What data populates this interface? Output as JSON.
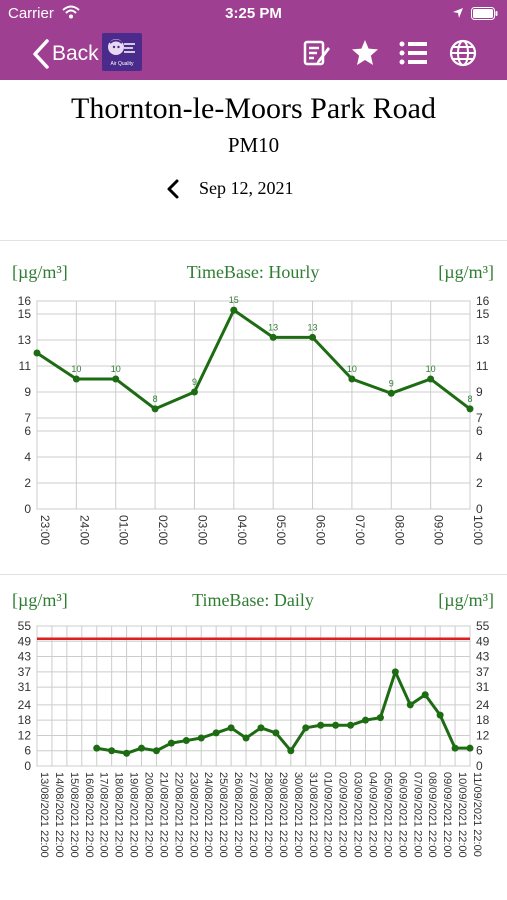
{
  "status": {
    "carrier": "Carrier",
    "time": "3:25 PM"
  },
  "nav": {
    "back_label": "Back",
    "logo_text": "Air Quality",
    "icons": [
      "notes-icon",
      "star-icon",
      "list-icon",
      "globe-icon"
    ]
  },
  "station": {
    "title": "Thornton-le-Moors Park Road",
    "pollutant": "PM10"
  },
  "date": {
    "label": "Sep 12, 2021"
  },
  "colors": {
    "accent": "#9e3f91",
    "series": "#1d6b12",
    "label": "#2f7d32",
    "limit": "#dd1f1f",
    "grid": "#cccccc"
  },
  "chart_data": [
    {
      "type": "line",
      "unit_left": "[µg/m³]",
      "unit_right": "[µg/m³]",
      "title": "TimeBase: Hourly",
      "categories": [
        "23:00",
        "24:00",
        "01:00",
        "02:00",
        "03:00",
        "04:00",
        "05:00",
        "06:00",
        "07:00",
        "08:00",
        "09:00",
        "10:00"
      ],
      "values": [
        12,
        10,
        10,
        7.7,
        9,
        15.3,
        13.2,
        13.2,
        10,
        8.9,
        10,
        7.7
      ],
      "data_labels": [
        "",
        "10",
        "10",
        "8",
        "9",
        "15",
        "13",
        "13",
        "10",
        "9",
        "10",
        "8"
      ],
      "y_ticks": [
        "0",
        "2",
        "4",
        "6",
        "7",
        "9",
        "11",
        "13",
        "15",
        "16"
      ],
      "ylim": [
        0,
        16
      ],
      "grid": true
    },
    {
      "type": "line",
      "unit_left": "[µg/m³]",
      "unit_right": "[µg/m³]",
      "title": "TimeBase: Daily",
      "categories": [
        "13/08/2021 22:00",
        "14/08/2021 22:00",
        "15/08/2021 22:00",
        "16/08/2021 22:00",
        "17/08/2021 22:00",
        "18/08/2021 22:00",
        "19/08/2021 22:00",
        "20/08/2021 22:00",
        "21/08/2021 22:00",
        "22/08/2021 22:00",
        "23/08/2021 22:00",
        "24/08/2021 22:00",
        "25/08/2021 22:00",
        "26/08/2021 22:00",
        "27/08/2021 22:00",
        "28/08/2021 22:00",
        "29/08/2021 22:00",
        "30/08/2021 22:00",
        "31/08/2021 22:00",
        "01/09/2021 22:00",
        "02/09/2021 22:00",
        "03/09/2021 22:00",
        "04/09/2021 22:00",
        "05/09/2021 22:00",
        "06/09/2021 22:00",
        "07/09/2021 22:00",
        "08/09/2021 22:00",
        "09/09/2021 22:00",
        "10/09/2021 22:00",
        "11/09/2021 22:00"
      ],
      "values": [
        null,
        null,
        null,
        null,
        7,
        6,
        5,
        7,
        6,
        9,
        10,
        11,
        13,
        15,
        11,
        15,
        13,
        6,
        15,
        16,
        16,
        16,
        18,
        19,
        37,
        24,
        28,
        20,
        7,
        7
      ],
      "y_ticks": [
        "0",
        "6",
        "12",
        "18",
        "24",
        "31",
        "37",
        "43",
        "49",
        "55"
      ],
      "ylim": [
        0,
        55
      ],
      "limit_line": 50,
      "grid": true
    }
  ]
}
